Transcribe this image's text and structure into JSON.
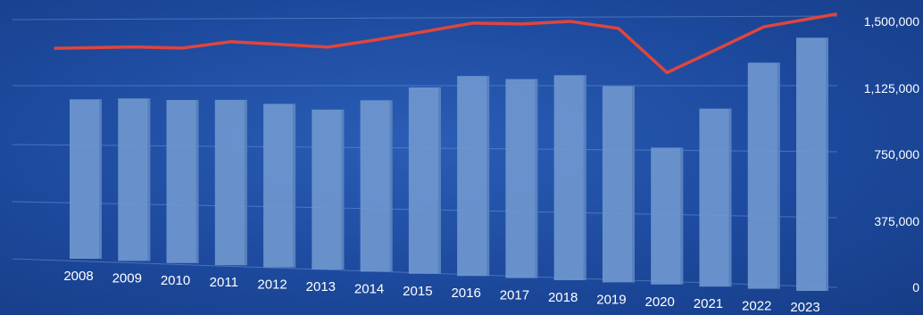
{
  "chart_data": {
    "type": "bar",
    "title": "",
    "xlabel": "",
    "ylabel": "",
    "categories": [
      "2008",
      "2009",
      "2010",
      "2011",
      "2012",
      "2013",
      "2014",
      "2015",
      "2016",
      "2017",
      "2018",
      "2019",
      "2020",
      "2021",
      "2022",
      "2023"
    ],
    "series": [
      {
        "type": "bar",
        "color": "#6f97cf",
        "values": [
          1000000,
          1010000,
          1005000,
          1010000,
          990000,
          960000,
          1020000,
          1100000,
          1170000,
          1155000,
          1180000,
          1120000,
          775000,
          1000000,
          1260000,
          1400000
        ]
      },
      {
        "type": "line",
        "color": "#e0453c",
        "values": [
          1320000,
          1330000,
          1325000,
          1365000,
          1350000,
          1335000,
          1380000,
          1430000,
          1480000,
          1475000,
          1490000,
          1450000,
          1200000,
          1330000,
          1460000,
          1530000
        ]
      }
    ],
    "y_ticks": [
      "0",
      "375,000",
      "750,000",
      "1,125,000",
      "1,500,000"
    ],
    "ylim": [
      0,
      1500000
    ],
    "y_axis_side": "right",
    "grid": true,
    "legend": "none"
  }
}
